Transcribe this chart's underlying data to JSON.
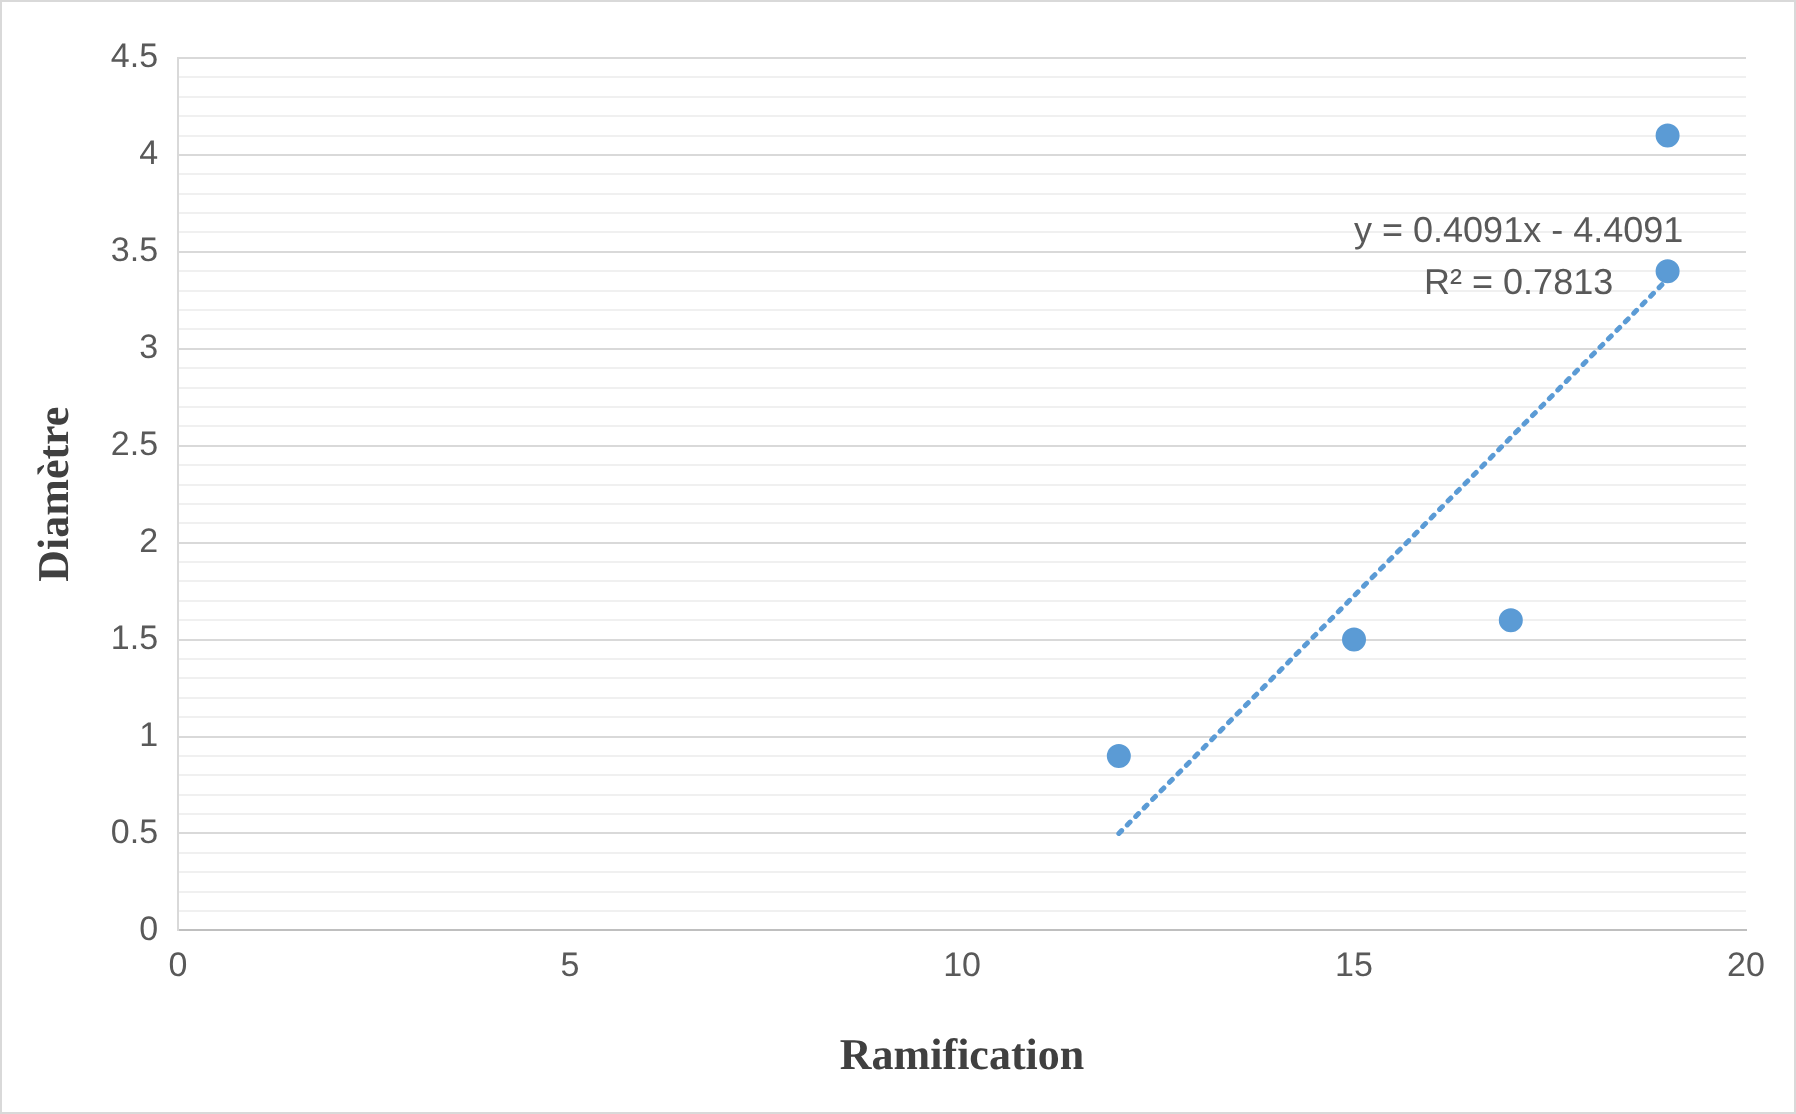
{
  "chart_data": {
    "type": "scatter",
    "xlabel": "Ramification",
    "ylabel": "Diamètre",
    "series": [
      {
        "color": "#5b9bd5",
        "x": [
          12,
          15,
          17,
          19,
          19
        ],
        "values": [
          0.9,
          1.5,
          1.6,
          3.4,
          4.1
        ],
        "marker": "circle"
      },
      {
        "type": "line",
        "color": "#5b9bd5",
        "x": [
          12,
          19
        ],
        "values": [
          0.5,
          3.36
        ],
        "line_style": "dotted",
        "marker": "none"
      }
    ],
    "annotations": [
      "y = 0.4091x - 4.4091",
      "R² = 0.7813"
    ],
    "xlim": [
      0,
      20
    ],
    "xticks": [
      0,
      5,
      10,
      15,
      20
    ],
    "ylim": [
      0,
      4.5
    ],
    "yticks": [
      0,
      {
        "value": 0.1,
        "label": null
      },
      {
        "value": 0.2,
        "label": null
      },
      {
        "value": 0.3,
        "label": null
      },
      {
        "value": 0.4,
        "label": null
      },
      0.5,
      {
        "value": 0.6,
        "label": null
      },
      {
        "value": 0.7,
        "label": null
      },
      {
        "value": 0.8,
        "label": null
      },
      {
        "value": 0.9,
        "label": null
      },
      1,
      {
        "value": 1.1,
        "label": null
      },
      {
        "value": 1.2,
        "label": null
      },
      {
        "value": 1.3,
        "label": null
      },
      {
        "value": 1.4,
        "label": null
      },
      1.5,
      {
        "value": 1.6,
        "label": null
      },
      {
        "value": 1.7,
        "label": null
      },
      {
        "value": 1.8,
        "label": null
      },
      {
        "value": 1.9,
        "label": null
      },
      2,
      {
        "value": 2.1,
        "label": null
      },
      {
        "value": 2.2,
        "label": null
      },
      {
        "value": 2.3,
        "label": null
      },
      {
        "value": 2.4,
        "label": null
      },
      2.5,
      {
        "value": 2.6,
        "label": null
      },
      {
        "value": 2.7,
        "label": null
      },
      {
        "value": 2.8,
        "label": null
      },
      {
        "value": 2.9,
        "label": null
      },
      3,
      {
        "value": 3.1,
        "label": null
      },
      {
        "value": 3.2,
        "label": null
      },
      {
        "value": 3.3,
        "label": null
      },
      {
        "value": 3.4,
        "label": null
      },
      3.5,
      {
        "value": 3.6,
        "label": null
      },
      {
        "value": 3.7,
        "label": null
      },
      {
        "value": 3.8,
        "label": null
      },
      {
        "value": 3.9,
        "label": null
      },
      4,
      {
        "value": 4.1,
        "label": null
      },
      {
        "value": 4.2,
        "label": null
      },
      {
        "value": 4.3,
        "label": null
      },
      {
        "value": 4.4,
        "label": null
      },
      4.5
    ],
    "grid": "y",
    "legend": false
  }
}
